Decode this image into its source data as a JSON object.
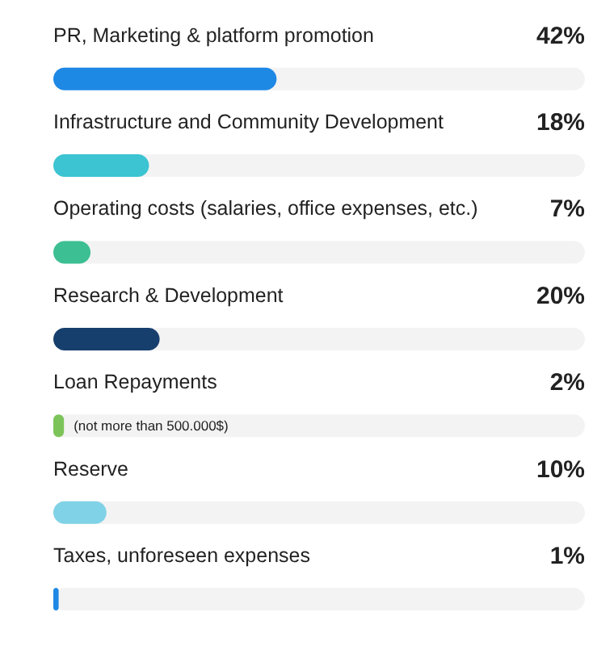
{
  "chart_data": {
    "type": "bar",
    "orientation": "horizontal",
    "categories": [
      "PR, Marketing & platform promotion",
      "Infrastructure and Community Development",
      "Operating costs (salaries, office expenses, etc.)",
      "Research & Development",
      "Loan Repayments",
      "Reserve",
      "Taxes, unforeseen expenses"
    ],
    "values": [
      42,
      18,
      7,
      20,
      2,
      10,
      1
    ],
    "colors": [
      "#1e88e5",
      "#3cc4d2",
      "#3cbf93",
      "#173f6e",
      "#7cc45a",
      "#80d2e6",
      "#1e88e5"
    ],
    "xlim": [
      0,
      100
    ],
    "value_labels": [
      "42%",
      "18%",
      "7%",
      "20%",
      "2%",
      "10%",
      "1%"
    ],
    "annotations": [
      {
        "text": "(not more than 500.000$)",
        "x": 2,
        "y": "Loan Repayments"
      }
    ]
  }
}
